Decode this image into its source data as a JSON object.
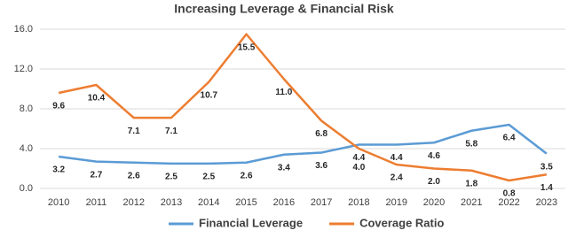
{
  "chart_data": {
    "type": "line",
    "title": "Increasing Leverage & Financial Risk",
    "categories": [
      "2010",
      "2011",
      "2012",
      "2013",
      "2014",
      "2015",
      "2016",
      "2017",
      "2018",
      "2019",
      "2020",
      "2021",
      "2022",
      "2023"
    ],
    "series": [
      {
        "name": "Financial Leverage",
        "color": "#5b9bd5",
        "values": [
          3.2,
          2.7,
          2.6,
          2.5,
          2.5,
          2.6,
          3.4,
          3.6,
          4.4,
          4.4,
          4.6,
          5.8,
          6.4,
          3.5
        ],
        "value_labels": [
          "3.2",
          "2.7",
          "2.6",
          "2.5",
          "2.5",
          "2.6",
          "3.4",
          "3.6",
          "4.4",
          "4.4",
          "4.6",
          "5.8",
          "6.4",
          "3.5"
        ]
      },
      {
        "name": "Coverage Ratio",
        "color": "#ed7d31",
        "values": [
          9.6,
          10.4,
          7.1,
          7.1,
          10.7,
          15.5,
          11.0,
          6.8,
          4.0,
          2.4,
          2.0,
          1.8,
          0.8,
          1.4
        ],
        "value_labels": [
          "9.6",
          "10.4",
          "7.1",
          "7.1",
          "10.7",
          "15.5",
          "11.0",
          "6.8",
          "4.0",
          "2.4",
          "2.0",
          "1.8",
          "0.8",
          "1.4"
        ]
      }
    ],
    "ylim": [
      0,
      16
    ],
    "yticks": [
      {
        "value": 0,
        "label": "0.0"
      },
      {
        "value": 4,
        "label": "4.0"
      },
      {
        "value": 8,
        "label": "8.0"
      },
      {
        "value": 12,
        "label": "12.0"
      },
      {
        "value": 16,
        "label": "16.0"
      }
    ],
    "grid": true
  }
}
